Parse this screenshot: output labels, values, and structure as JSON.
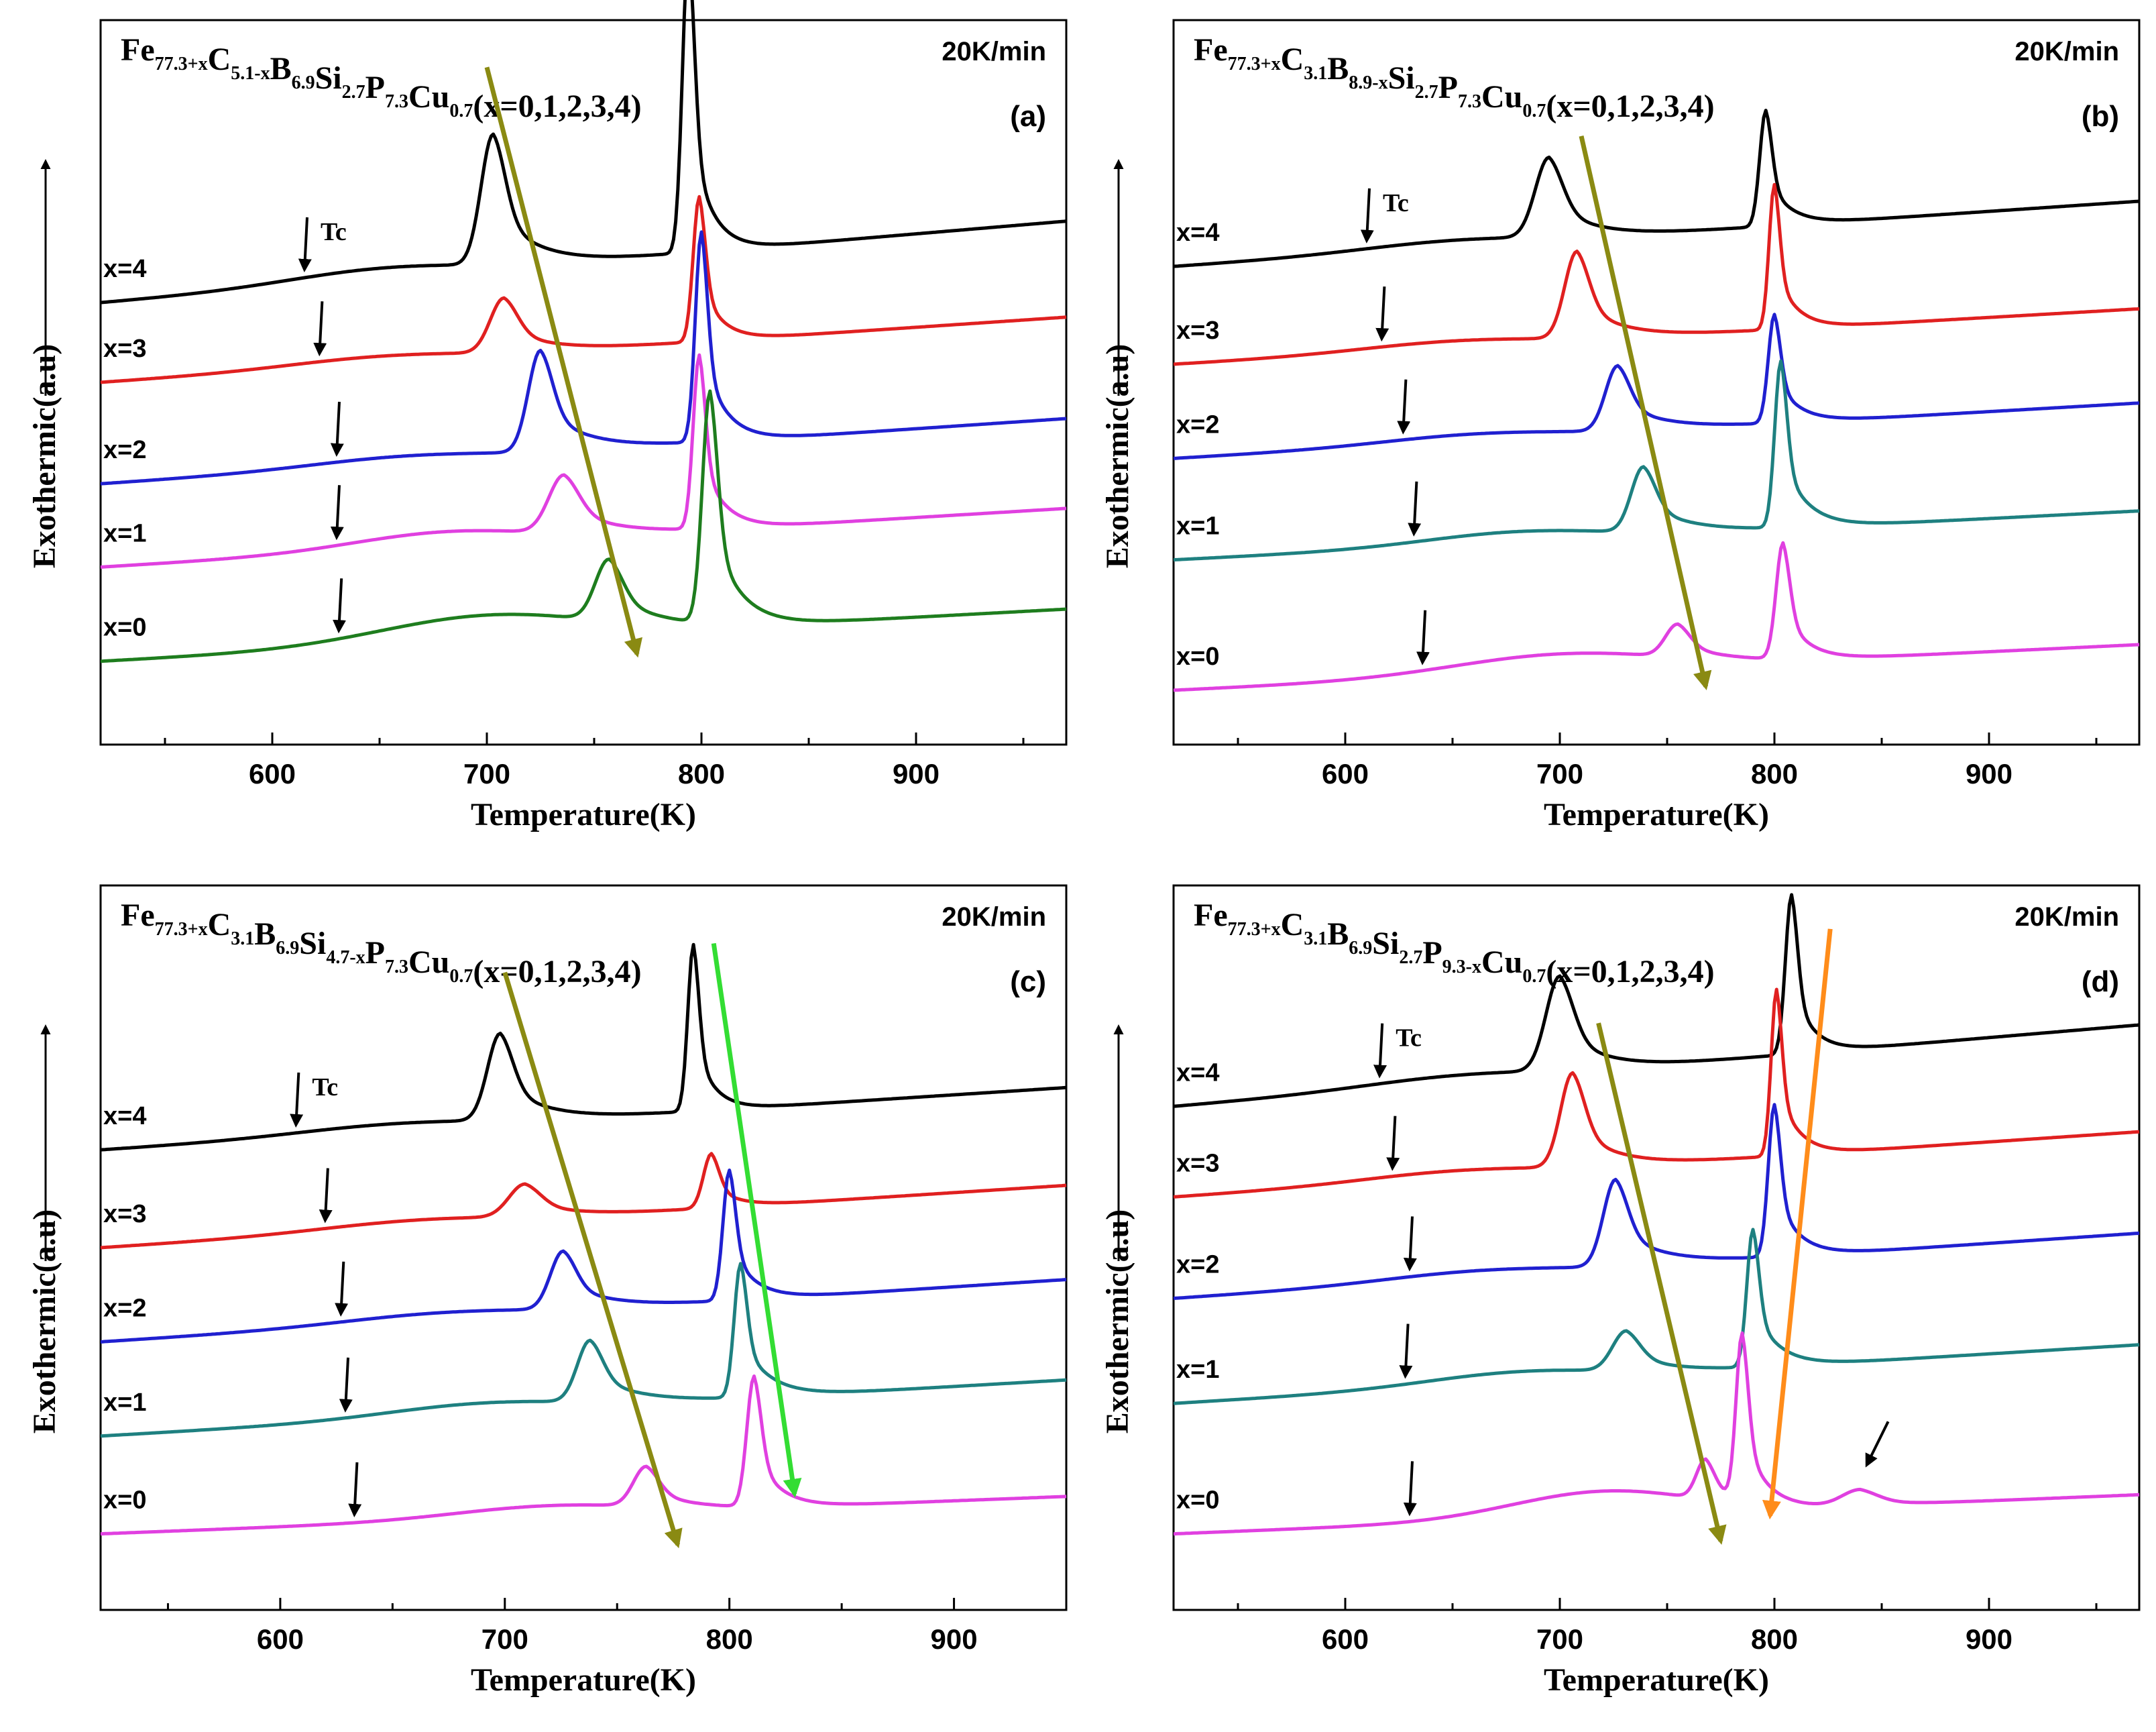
{
  "chart_data": [
    {
      "type": "line",
      "panel_label": "(a)",
      "heating_rate": "20K/min",
      "title_parts": [
        {
          "t": "Fe",
          "sub": false
        },
        {
          "t": "77.3+x",
          "sub": true
        },
        {
          "t": "C",
          "sub": false
        },
        {
          "t": "5.1-x",
          "sub": true
        },
        {
          "t": "B",
          "sub": false
        },
        {
          "t": "6.9",
          "sub": true
        },
        {
          "t": "Si",
          "sub": false
        },
        {
          "t": "2.7",
          "sub": true
        },
        {
          "t": "P",
          "sub": false
        },
        {
          "t": "7.3",
          "sub": true
        },
        {
          "t": "Cu",
          "sub": false
        },
        {
          "t": "0.7",
          "sub": true
        },
        {
          "t": "(x=0,1,2,3,4)",
          "sub": false
        }
      ],
      "xlabel": "Temperature(K)",
      "ylabel": "Exothermic(a.u)",
      "xlim": [
        520,
        970
      ],
      "ylim": [
        0,
        10
      ],
      "xticks": [
        600,
        700,
        800,
        900
      ],
      "tc_label": "Tc",
      "series": [
        {
          "name": "x=4",
          "color": "#000000",
          "base": 6.1,
          "slope": 0.0025,
          "tc": 615,
          "peaks": [
            {
              "x": 703,
              "h": 1.8,
              "w": 8,
              "tail": 18
            },
            {
              "x": 794,
              "h": 4.2,
              "w": 4,
              "tail": 9
            }
          ],
          "hump": {
            "x": 650,
            "h": 0.15,
            "w": 60
          }
        },
        {
          "name": "x=3",
          "color": "#e02020",
          "base": 5.0,
          "slope": 0.002,
          "tc": 622,
          "peaks": [
            {
              "x": 708,
              "h": 0.75,
              "w": 9,
              "tail": 20
            },
            {
              "x": 799,
              "h": 2.0,
              "w": 4,
              "tail": 9
            }
          ],
          "hump": {
            "x": 650,
            "h": 0.1,
            "w": 60
          }
        },
        {
          "name": "x=2",
          "color": "#2020d0",
          "base": 3.6,
          "slope": 0.002,
          "tc": 630,
          "peaks": [
            {
              "x": 725,
              "h": 1.4,
              "w": 8,
              "tail": 20
            },
            {
              "x": 800,
              "h": 2.9,
              "w": 4,
              "tail": 10
            }
          ],
          "hump": {
            "x": 660,
            "h": 0.1,
            "w": 60
          }
        },
        {
          "name": "x=1",
          "color": "#e040e0",
          "base": 2.45,
          "slope": 0.0018,
          "tc": 630,
          "peaks": [
            {
              "x": 736,
              "h": 0.8,
              "w": 10,
              "tail": 22
            },
            {
              "x": 799,
              "h": 2.4,
              "w": 4,
              "tail": 10
            }
          ],
          "hump": {
            "x": 680,
            "h": 0.2,
            "w": 60
          }
        },
        {
          "name": "x=0",
          "color": "#1e7d1e",
          "base": 1.15,
          "slope": 0.0016,
          "tc": 631,
          "peaks": [
            {
              "x": 757,
              "h": 0.85,
              "w": 9,
              "tail": 20
            },
            {
              "x": 804,
              "h": 3.2,
              "w": 5,
              "tail": 12
            }
          ],
          "hump": {
            "x": 700,
            "h": 0.35,
            "w": 70
          }
        }
      ],
      "trend_arrows": [
        {
          "color": "#8a8a12",
          "from": [
            700,
            9.35
          ],
          "to": [
            770,
            1.25
          ]
        }
      ],
      "extra_arrows": []
    },
    {
      "type": "line",
      "panel_label": "(b)",
      "heating_rate": "20K/min",
      "title_parts": [
        {
          "t": "Fe",
          "sub": false
        },
        {
          "t": "77.3+x",
          "sub": true
        },
        {
          "t": "C",
          "sub": false
        },
        {
          "t": "3.1",
          "sub": true
        },
        {
          "t": "B",
          "sub": false
        },
        {
          "t": "8.9-x",
          "sub": true
        },
        {
          "t": "Si",
          "sub": false
        },
        {
          "t": "2.7",
          "sub": true
        },
        {
          "t": "P",
          "sub": false
        },
        {
          "t": "7.3",
          "sub": true
        },
        {
          "t": "Cu",
          "sub": false
        },
        {
          "t": "0.7",
          "sub": true
        },
        {
          "t": "(x=0,1,2,3,4)",
          "sub": false
        }
      ],
      "xlabel": "Temperature(K)",
      "ylabel": "Exothermic(a.u)",
      "xlim": [
        520,
        970
      ],
      "ylim": [
        0,
        10
      ],
      "xticks": [
        600,
        700,
        800,
        900
      ],
      "tc_label": "Tc",
      "series": [
        {
          "name": "x=4",
          "color": "#000000",
          "base": 6.6,
          "slope": 0.002,
          "tc": 610,
          "peaks": [
            {
              "x": 695,
              "h": 1.1,
              "w": 9,
              "tail": 18
            },
            {
              "x": 796,
              "h": 1.6,
              "w": 4,
              "tail": 10
            }
          ],
          "hump": {
            "x": 650,
            "h": 0.1,
            "w": 60
          }
        },
        {
          "name": "x=3",
          "color": "#e02020",
          "base": 5.25,
          "slope": 0.0017,
          "tc": 617,
          "peaks": [
            {
              "x": 708,
              "h": 1.2,
              "w": 8,
              "tail": 18
            },
            {
              "x": 800,
              "h": 2.0,
              "w": 3.5,
              "tail": 9
            }
          ],
          "hump": {
            "x": 650,
            "h": 0.1,
            "w": 60
          }
        },
        {
          "name": "x=2",
          "color": "#2020d0",
          "base": 3.95,
          "slope": 0.0017,
          "tc": 627,
          "peaks": [
            {
              "x": 727,
              "h": 0.9,
              "w": 8,
              "tail": 20
            },
            {
              "x": 800,
              "h": 1.5,
              "w": 4,
              "tail": 10
            }
          ],
          "hump": {
            "x": 660,
            "h": 0.1,
            "w": 60
          }
        },
        {
          "name": "x=1",
          "color": "#1e8080",
          "base": 2.55,
          "slope": 0.0015,
          "tc": 632,
          "peaks": [
            {
              "x": 739,
              "h": 0.9,
              "w": 8,
              "tail": 20
            },
            {
              "x": 803,
              "h": 2.3,
              "w": 4,
              "tail": 11
            }
          ],
          "hump": {
            "x": 680,
            "h": 0.15,
            "w": 60
          }
        },
        {
          "name": "x=0",
          "color": "#e040e0",
          "base": 0.75,
          "slope": 0.0014,
          "tc": 636,
          "peaks": [
            {
              "x": 755,
              "h": 0.45,
              "w": 8,
              "tail": 16
            },
            {
              "x": 804,
              "h": 1.6,
              "w": 4.5,
              "tail": 10
            }
          ],
          "hump": {
            "x": 700,
            "h": 0.25,
            "w": 70
          }
        }
      ],
      "trend_arrows": [
        {
          "color": "#8a8a12",
          "from": [
            710,
            8.4
          ],
          "to": [
            768,
            0.8
          ]
        }
      ],
      "extra_arrows": []
    },
    {
      "type": "line",
      "panel_label": "(c)",
      "heating_rate": "20K/min",
      "title_parts": [
        {
          "t": "Fe",
          "sub": false
        },
        {
          "t": "77.3+x",
          "sub": true
        },
        {
          "t": "C",
          "sub": false
        },
        {
          "t": "3.1",
          "sub": true
        },
        {
          "t": "B",
          "sub": false
        },
        {
          "t": "6.9",
          "sub": true
        },
        {
          "t": "Si",
          "sub": false
        },
        {
          "t": "4.7-x",
          "sub": true
        },
        {
          "t": "P",
          "sub": false
        },
        {
          "t": "7.3",
          "sub": true
        },
        {
          "t": "Cu",
          "sub": false
        },
        {
          "t": "0.7",
          "sub": true
        },
        {
          "t": "(x=0,1,2,3,4)",
          "sub": false
        }
      ],
      "xlabel": "Temperature(K)",
      "ylabel": "Exothermic(a.u)",
      "xlim": [
        520,
        950
      ],
      "ylim": [
        0,
        10
      ],
      "xticks": [
        600,
        700,
        800,
        900
      ],
      "tc_label": "Tc",
      "series": [
        {
          "name": "x=4",
          "color": "#000000",
          "base": 6.35,
          "slope": 0.002,
          "tc": 607,
          "peaks": [
            {
              "x": 698,
              "h": 1.2,
              "w": 8,
              "tail": 18
            },
            {
              "x": 784,
              "h": 2.3,
              "w": 3.5,
              "tail": 8
            }
          ],
          "hump": {
            "x": 650,
            "h": 0.1,
            "w": 60
          }
        },
        {
          "name": "x=3",
          "color": "#e02020",
          "base": 5.0,
          "slope": 0.002,
          "tc": 620,
          "peaks": [
            {
              "x": 709,
              "h": 0.45,
              "w": 10,
              "tail": 20
            },
            {
              "x": 792,
              "h": 0.75,
              "w": 5,
              "tail": 10
            }
          ],
          "hump": {
            "x": 660,
            "h": 0.1,
            "w": 60
          }
        },
        {
          "name": "x=2",
          "color": "#2020d0",
          "base": 3.7,
          "slope": 0.002,
          "tc": 627,
          "peaks": [
            {
              "x": 726,
              "h": 0.8,
              "w": 8,
              "tail": 20
            },
            {
              "x": 800,
              "h": 1.8,
              "w": 4,
              "tail": 10
            }
          ],
          "hump": {
            "x": 670,
            "h": 0.1,
            "w": 60
          }
        },
        {
          "name": "x=1",
          "color": "#1e8080",
          "base": 2.4,
          "slope": 0.0018,
          "tc": 629,
          "peaks": [
            {
              "x": 738,
              "h": 0.85,
              "w": 8,
              "tail": 20
            },
            {
              "x": 805,
              "h": 1.85,
              "w": 4,
              "tail": 12
            }
          ],
          "hump": {
            "x": 690,
            "h": 0.15,
            "w": 60
          }
        },
        {
          "name": "x=0",
          "color": "#e040e0",
          "base": 1.05,
          "slope": 0.0012,
          "tc": 633,
          "peaks": [
            {
              "x": 763,
              "h": 0.55,
              "w": 8,
              "tail": 16
            },
            {
              "x": 811,
              "h": 1.8,
              "w": 4.5,
              "tail": 10
            }
          ],
          "hump": {
            "x": 720,
            "h": 0.15,
            "w": 60
          }
        }
      ],
      "trend_arrows": [
        {
          "color": "#8a8a12",
          "from": [
            700,
            8.8
          ],
          "to": [
            777,
            0.9
          ]
        },
        {
          "color": "#33dd33",
          "from": [
            793,
            9.2
          ],
          "to": [
            829,
            1.6
          ]
        }
      ],
      "extra_arrows": []
    },
    {
      "type": "line",
      "panel_label": "(d)",
      "heating_rate": "20K/min",
      "title_parts": [
        {
          "t": "Fe",
          "sub": false
        },
        {
          "t": "77.3+x",
          "sub": true
        },
        {
          "t": "C",
          "sub": false
        },
        {
          "t": "3.1",
          "sub": true
        },
        {
          "t": "B",
          "sub": false
        },
        {
          "t": "6.9",
          "sub": true
        },
        {
          "t": "Si",
          "sub": false
        },
        {
          "t": "2.7",
          "sub": true
        },
        {
          "t": "P",
          "sub": false
        },
        {
          "t": "9.3-x",
          "sub": true
        },
        {
          "t": "Cu",
          "sub": false
        },
        {
          "t": "0.7",
          "sub": true
        },
        {
          "t": "(x=0,1,2,3,4)",
          "sub": false
        }
      ],
      "xlabel": "Temperature(K)",
      "ylabel": "Exothermic(a.u)",
      "xlim": [
        520,
        970
      ],
      "ylim": [
        0,
        10
      ],
      "xticks": [
        600,
        700,
        800,
        900
      ],
      "tc_label": "Tc",
      "series": [
        {
          "name": "x=4",
          "color": "#000000",
          "base": 6.95,
          "slope": 0.0025,
          "tc": 616,
          "peaks": [
            {
              "x": 700,
              "h": 1.3,
              "w": 9,
              "tail": 18
            },
            {
              "x": 808,
              "h": 2.2,
              "w": 4,
              "tail": 9
            }
          ],
          "hump": {
            "x": 650,
            "h": 0.1,
            "w": 60
          }
        },
        {
          "name": "x=3",
          "color": "#e02020",
          "base": 5.7,
          "slope": 0.002,
          "tc": 622,
          "peaks": [
            {
              "x": 706,
              "h": 1.3,
              "w": 8,
              "tail": 18
            },
            {
              "x": 801,
              "h": 2.3,
              "w": 3.5,
              "tail": 9
            }
          ],
          "hump": {
            "x": 650,
            "h": 0.1,
            "w": 60
          }
        },
        {
          "name": "x=2",
          "color": "#2020d0",
          "base": 4.3,
          "slope": 0.002,
          "tc": 630,
          "peaks": [
            {
              "x": 726,
              "h": 1.2,
              "w": 8,
              "tail": 20
            },
            {
              "x": 800,
              "h": 2.1,
              "w": 4,
              "tail": 10
            }
          ],
          "hump": {
            "x": 660,
            "h": 0.1,
            "w": 60
          }
        },
        {
          "name": "x=1",
          "color": "#1e8080",
          "base": 2.85,
          "slope": 0.0018,
          "tc": 628,
          "peaks": [
            {
              "x": 731,
              "h": 0.55,
              "w": 9,
              "tail": 18
            },
            {
              "x": 790,
              "h": 1.9,
              "w": 4,
              "tail": 11
            }
          ],
          "hump": {
            "x": 680,
            "h": 0.15,
            "w": 60
          }
        },
        {
          "name": "x=0",
          "color": "#e040e0",
          "base": 1.05,
          "slope": 0.0012,
          "tc": 630,
          "peaks": [
            {
              "x": 768,
              "h": 0.55,
              "w": 6,
              "tail": 10
            },
            {
              "x": 785,
              "h": 2.3,
              "w": 4,
              "tail": 9
            },
            {
              "x": 840,
              "h": 0.22,
              "w": 12,
              "tail": 14
            }
          ],
          "hump": {
            "x": 720,
            "h": 0.35,
            "w": 60
          }
        }
      ],
      "trend_arrows": [
        {
          "color": "#8a8a12",
          "from": [
            718,
            8.1
          ],
          "to": [
            775,
            0.95
          ]
        },
        {
          "color": "#ff8c1a",
          "from": [
            826,
            9.4
          ],
          "to": [
            798,
            1.3
          ]
        }
      ],
      "extra_arrows": [
        {
          "color": "#000000",
          "from": [
            853,
            2.6
          ],
          "to": [
            843,
            2.0
          ]
        }
      ]
    }
  ]
}
